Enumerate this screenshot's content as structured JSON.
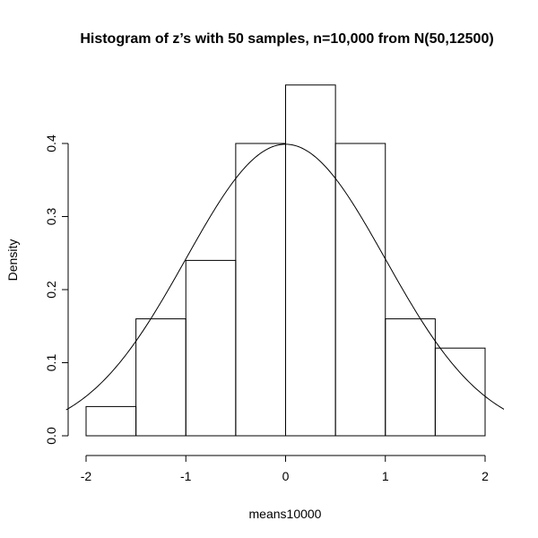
{
  "chart_data": {
    "type": "bar",
    "title": "Histogram of z’s with 50 samples, n=10,000 from N(50,12500)",
    "xlabel": "means10000",
    "ylabel": "Density",
    "xlim": [
      -2.0,
      2.2
    ],
    "ylim": [
      0,
      0.48
    ],
    "x_ticks": [
      -2,
      -1,
      0,
      1,
      2
    ],
    "x_tick_labels": [
      "-2",
      "-1",
      "0",
      "1",
      "2"
    ],
    "y_ticks": [
      0.0,
      0.1,
      0.2,
      0.3,
      0.4
    ],
    "y_tick_labels": [
      "0.0",
      "0.1",
      "0.2",
      "0.3",
      "0.4"
    ],
    "bins": [
      {
        "from": -2.0,
        "to": -1.5,
        "density": 0.04
      },
      {
        "from": -1.5,
        "to": -1.0,
        "density": 0.16
      },
      {
        "from": -1.0,
        "to": -0.5,
        "density": 0.24
      },
      {
        "from": -0.5,
        "to": 0.0,
        "density": 0.4
      },
      {
        "from": 0.0,
        "to": 0.5,
        "density": 0.48
      },
      {
        "from": 0.5,
        "to": 1.0,
        "density": 0.4
      },
      {
        "from": 1.0,
        "to": 1.5,
        "density": 0.16
      },
      {
        "from": 1.5,
        "to": 2.0,
        "density": 0.12
      }
    ],
    "overlay_curve": {
      "type": "normal-density",
      "mean": 0,
      "sd": 1,
      "x_range": [
        -2.2,
        2.2
      ]
    },
    "grid": false,
    "legend": "none"
  }
}
